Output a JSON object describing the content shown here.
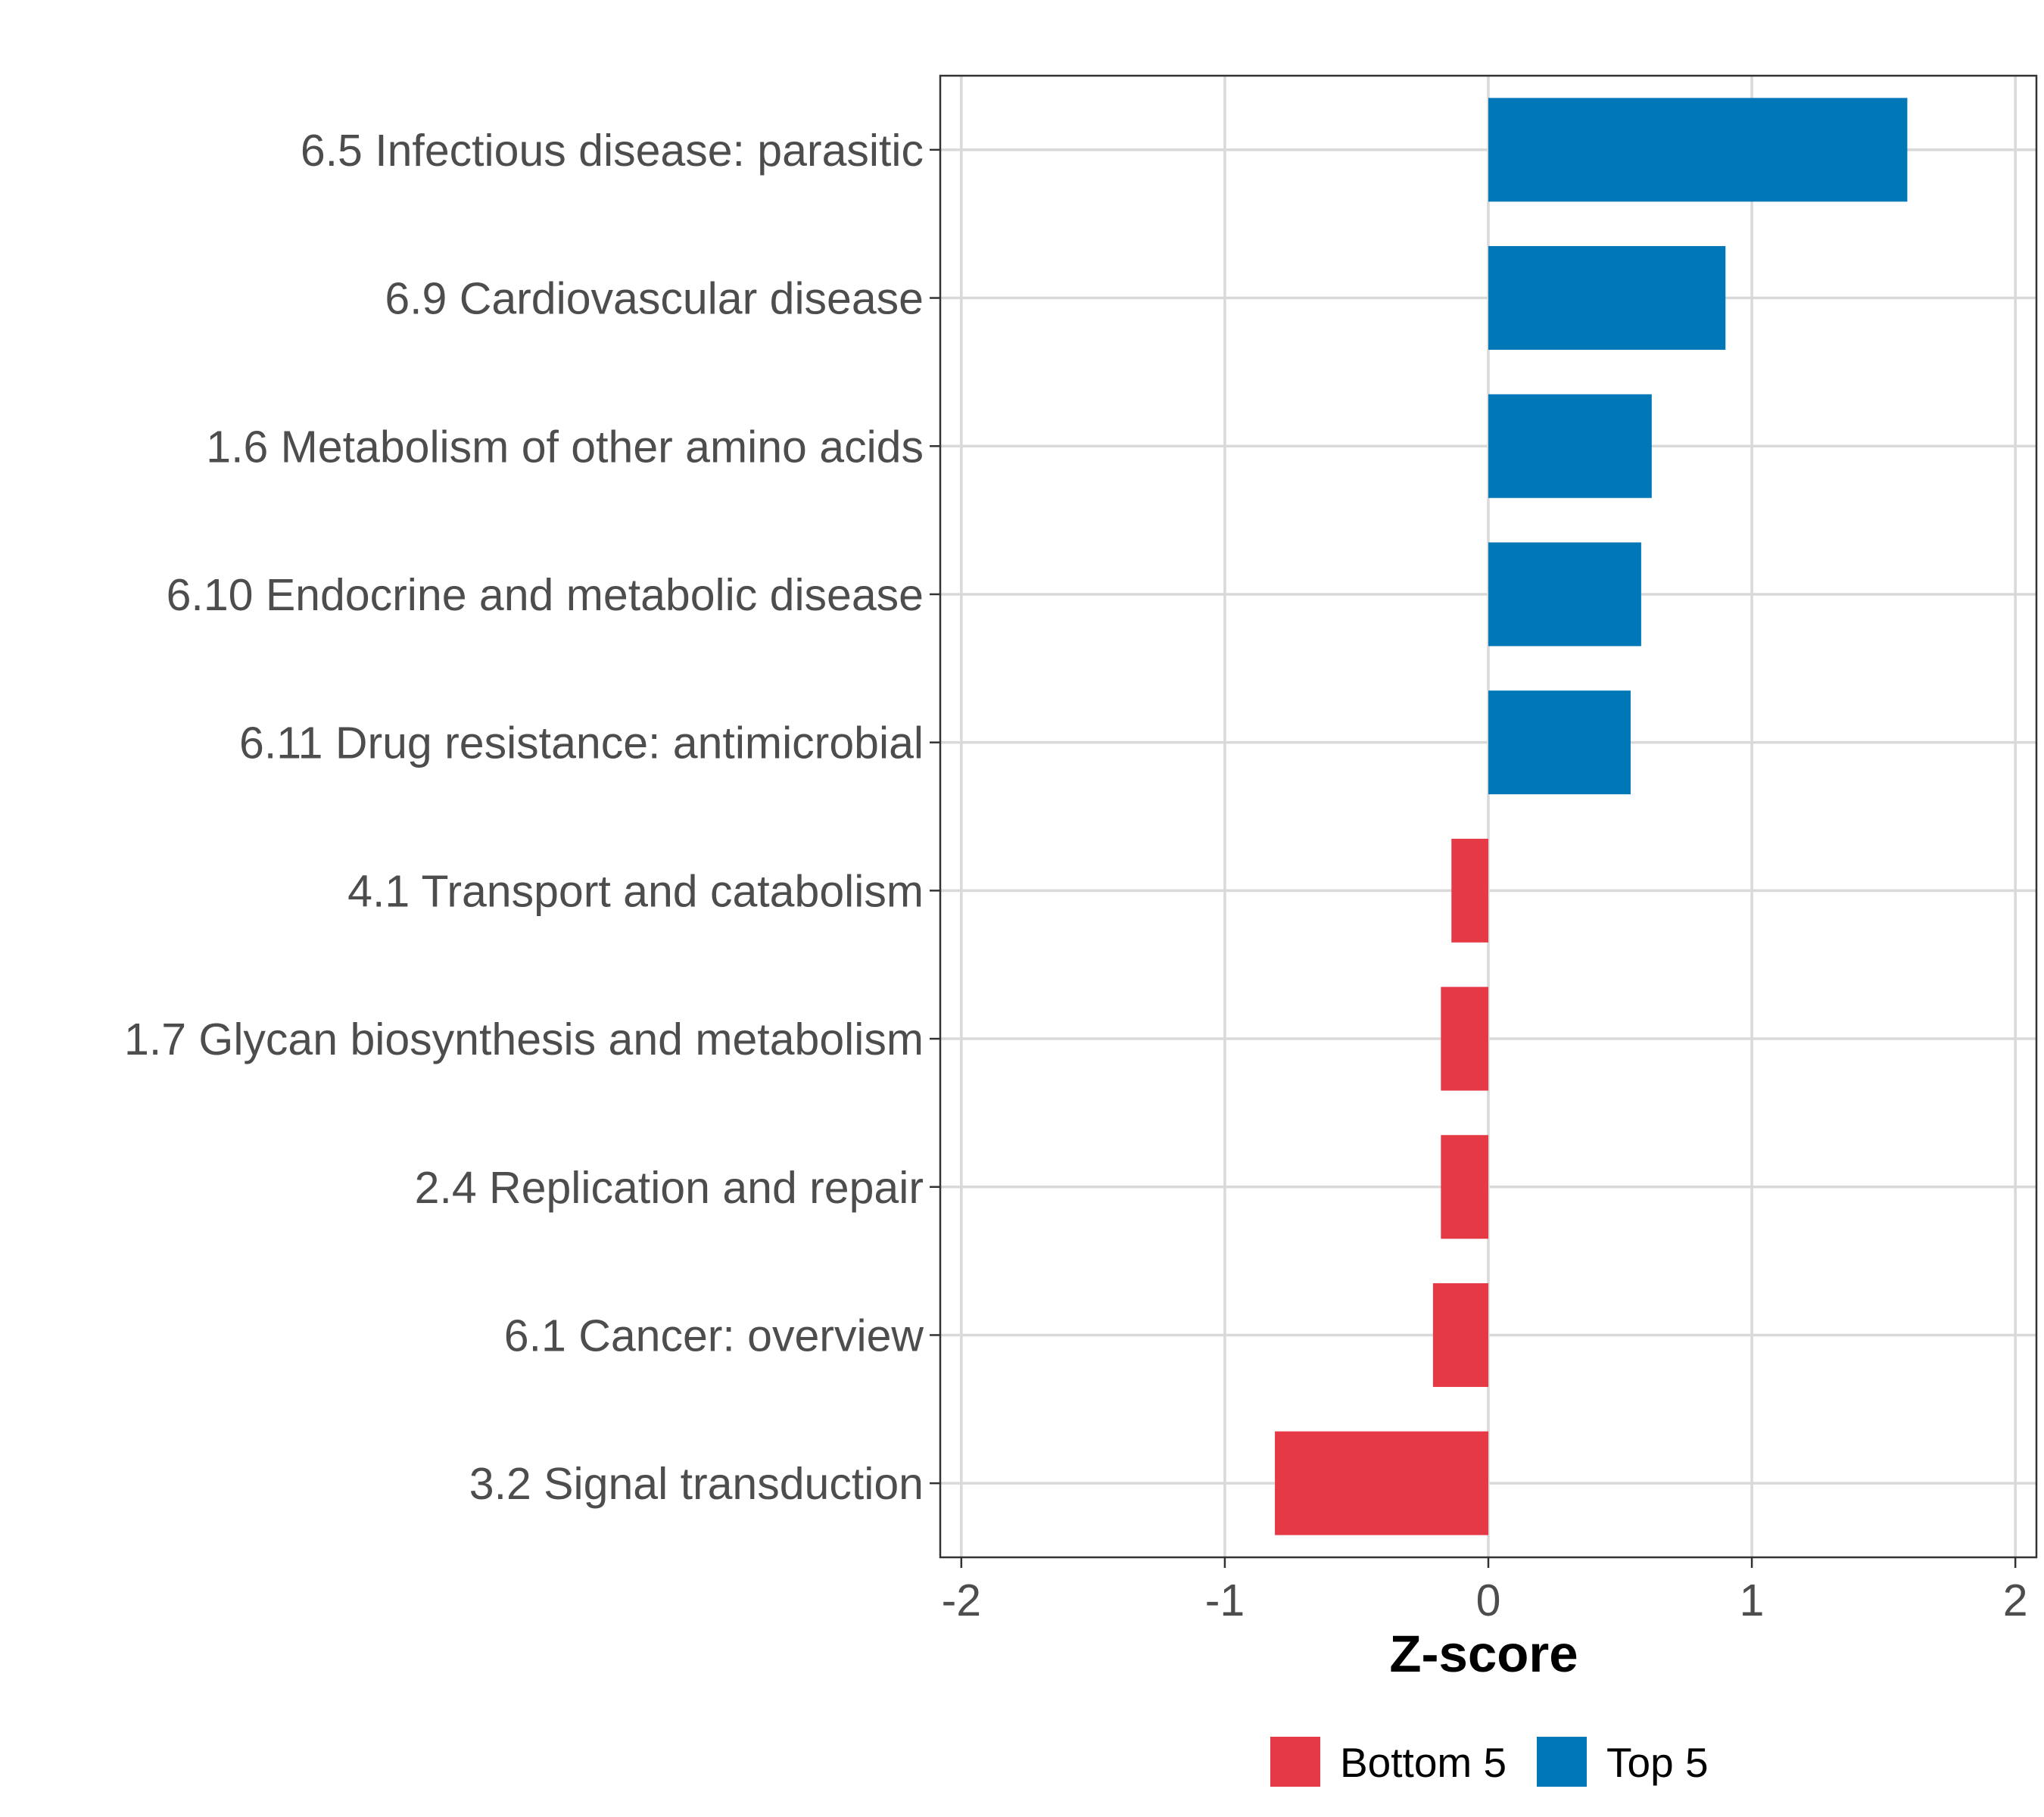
{
  "chart_data": {
    "type": "bar",
    "orientation": "horizontal",
    "categories": [
      "6.5 Infectious disease: parasitic",
      "6.9 Cardiovascular disease",
      "1.6 Metabolism of other amino acids",
      "6.10 Endocrine and metabolic disease",
      "6.11 Drug resistance: antimicrobial",
      "4.1 Transport and catabolism",
      "1.7 Glycan biosynthesis and metabolism",
      "2.4 Replication and repair",
      "6.1 Cancer: overview",
      "3.2 Signal transduction"
    ],
    "values": [
      1.59,
      0.9,
      0.62,
      0.58,
      0.54,
      -0.14,
      -0.18,
      -0.18,
      -0.21,
      -0.81
    ],
    "groups": [
      "Top 5",
      "Top 5",
      "Top 5",
      "Top 5",
      "Top 5",
      "Bottom 5",
      "Bottom 5",
      "Bottom 5",
      "Bottom 5",
      "Bottom 5"
    ],
    "xlabel": "Z-score",
    "ylabel": "",
    "xlim": [
      -2.08,
      2.08
    ],
    "xticks": [
      -2,
      -1,
      0,
      1,
      2
    ],
    "xtick_labels": [
      "-2",
      "-1",
      "0",
      "1",
      "2"
    ],
    "grid": true,
    "legend": {
      "position": "bottom",
      "entries": [
        {
          "label": "Bottom 5",
          "color": "#E63946"
        },
        {
          "label": "Top 5",
          "color": "#0077B6"
        }
      ]
    },
    "colors": {
      "Top 5": "#0077B6",
      "Bottom 5": "#E63946"
    }
  }
}
